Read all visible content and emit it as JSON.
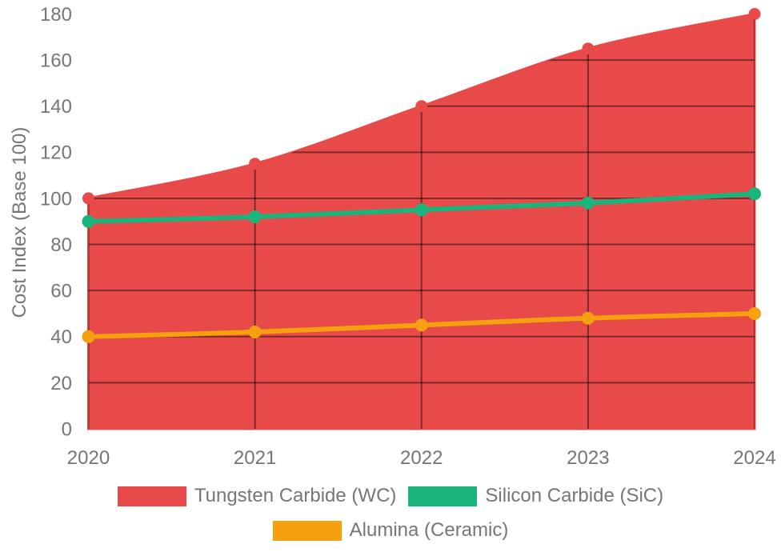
{
  "chart_data": {
    "type": "area",
    "title": "",
    "xlabel": "",
    "ylabel": "Cost Index (Base 100)",
    "categories": [
      "2020",
      "2021",
      "2022",
      "2023",
      "2024"
    ],
    "series": [
      {
        "name": "Tungsten Carbide (WC)",
        "color": "#E84A4A",
        "style": "filled-area",
        "values": [
          100,
          115,
          140,
          165,
          180
        ]
      },
      {
        "name": "Silicon Carbide (SiC)",
        "color": "#1AB47D",
        "style": "line",
        "values": [
          90,
          92,
          95,
          98,
          102
        ]
      },
      {
        "name": "Alumina (Ceramic)",
        "color": "#F5A00F",
        "style": "line",
        "values": [
          40,
          42,
          45,
          48,
          50
        ]
      }
    ],
    "ylim": [
      0,
      180
    ],
    "yticks": [
      0,
      20,
      40,
      60,
      80,
      100,
      120,
      140,
      160,
      180
    ],
    "grid": true,
    "grid_clipped_to_area": true,
    "grid_color": "rgba(0,0,0,0.45)",
    "text_color": "#767676",
    "background_color": "#FFFFFF",
    "legend_position": "bottom",
    "legend_rows": [
      [
        "Tungsten Carbide (WC)",
        "Silicon Carbide (SiC)"
      ],
      [
        "Alumina (Ceramic)"
      ]
    ]
  }
}
